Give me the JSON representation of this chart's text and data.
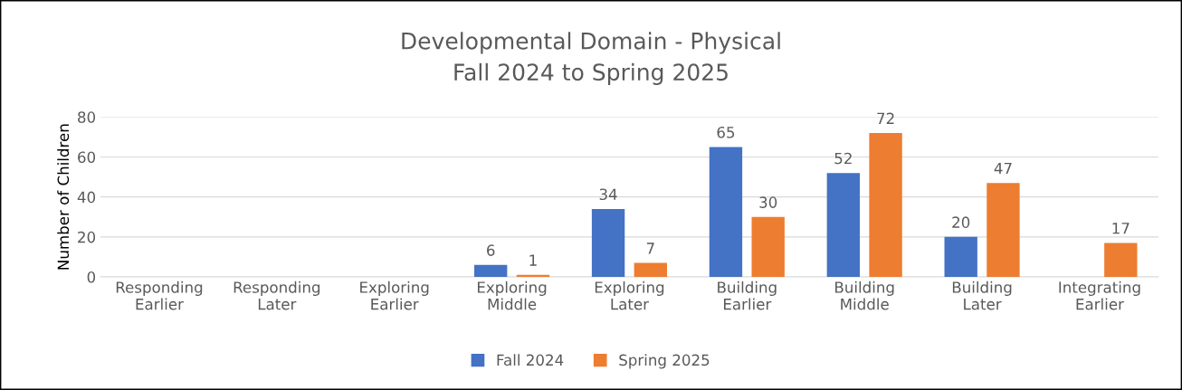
{
  "chart_data": {
    "type": "bar",
    "title": "Developmental Domain - Physical",
    "subtitle": "Fall 2024 to Spring 2025",
    "ylabel": "Number of Children",
    "categories": [
      "Responding\nEarlier",
      "Responding\nLater",
      "Exploring\nEarlier",
      "Exploring\nMiddle",
      "Exploring\nLater",
      "Building\nEarlier",
      "Building\nMiddle",
      "Building\nLater",
      "Integrating\nEarlier"
    ],
    "series": [
      {
        "name": "Fall 2024",
        "color": "#4472c4",
        "values": [
          null,
          null,
          null,
          6,
          34,
          65,
          52,
          20,
          null
        ]
      },
      {
        "name": "Spring 2025",
        "color": "#ed7d31",
        "values": [
          null,
          null,
          null,
          1,
          7,
          30,
          72,
          47,
          17
        ]
      }
    ],
    "ylim": [
      0,
      80
    ],
    "yticks": [
      0,
      20,
      40,
      60,
      80
    ],
    "grid": "y",
    "legend": "bottom",
    "data_labels": true
  }
}
